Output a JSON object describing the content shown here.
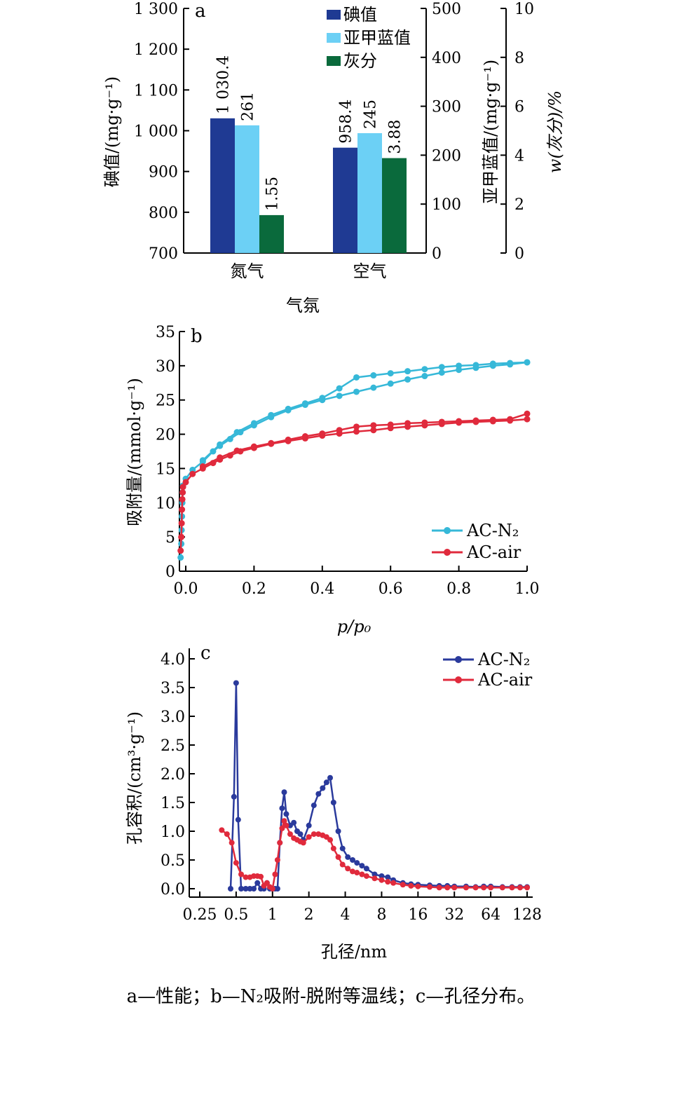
{
  "caption": "a—性能；b—N₂吸附-脱附等温线；c—孔径分布。",
  "chart_data": [
    {
      "panel": "a",
      "type": "bar",
      "categories": [
        "氮气",
        "空气"
      ],
      "xlabel": "气氛",
      "series": [
        {
          "name": "碘值",
          "axis": "left",
          "color": "#1f3a93",
          "values": [
            1030.4,
            958.4
          ],
          "labels": [
            "1 030.4",
            "958.4"
          ]
        },
        {
          "name": "亚甲蓝值",
          "axis": "right1",
          "color": "#6cd0f5",
          "values": [
            261,
            245
          ],
          "labels": [
            "261",
            "245"
          ]
        },
        {
          "name": "灰分",
          "axis": "right2",
          "color": "#0a6a3c",
          "values": [
            1.55,
            3.88
          ],
          "labels": [
            "1.55",
            "3.88"
          ]
        }
      ],
      "axes": {
        "left": {
          "label": "碘值/(mg·g⁻¹)",
          "range": [
            700,
            1300
          ],
          "ticks": [
            "700",
            "800",
            "900",
            "1 000",
            "1 100",
            "1 200",
            "1 300"
          ]
        },
        "right1": {
          "label": "亚甲蓝值/(mg·g⁻¹)",
          "range": [
            0,
            500
          ],
          "ticks": [
            "0",
            "100",
            "200",
            "300",
            "400",
            "500"
          ]
        },
        "right2": {
          "label": "w(灰分)/%",
          "range": [
            0,
            10
          ],
          "ticks": [
            "0",
            "2",
            "4",
            "6",
            "8",
            "10"
          ]
        }
      },
      "legend_position": "top-center"
    },
    {
      "panel": "b",
      "type": "line",
      "xlabel": "p/p₀",
      "ylabel": "吸附量/(mmol·g⁻¹)",
      "xlim": [
        -0.02,
        1.0
      ],
      "ylim": [
        0,
        35
      ],
      "xticks": [
        "0.0",
        "0.2",
        "0.4",
        "0.6",
        "0.8",
        "1.0"
      ],
      "yticks": [
        "0",
        "5",
        "10",
        "15",
        "20",
        "25",
        "30",
        "35"
      ],
      "legend_position": "bottom-right",
      "series": [
        {
          "name": "AC-N₂",
          "color": "#36b8d8",
          "branch": "adsorption",
          "x": [
            -0.015,
            -0.013,
            -0.012,
            -0.011,
            -0.01,
            -0.009,
            -0.008,
            0.0,
            0.02,
            0.05,
            0.08,
            0.1,
            0.13,
            0.16,
            0.2,
            0.25,
            0.3,
            0.35,
            0.4,
            0.45,
            0.5,
            0.55,
            0.6,
            0.65,
            0.7,
            0.75,
            0.8,
            0.85,
            0.9,
            0.95,
            1.0
          ],
          "y": [
            2,
            4,
            6,
            8,
            10,
            11.5,
            12.5,
            13.5,
            14.8,
            16,
            17.5,
            18.3,
            19.3,
            20.3,
            21.3,
            22.5,
            23.5,
            24.3,
            25,
            25.6,
            26.2,
            26.8,
            27.4,
            28,
            28.5,
            29,
            29.4,
            29.7,
            30,
            30.2,
            30.5
          ]
        },
        {
          "name": "AC-N₂",
          "color": "#36b8d8",
          "branch": "desorption",
          "x": [
            1.0,
            0.95,
            0.9,
            0.85,
            0.8,
            0.75,
            0.7,
            0.65,
            0.6,
            0.55,
            0.5,
            0.45,
            0.4,
            0.35,
            0.3,
            0.25,
            0.2,
            0.15,
            0.1,
            0.05
          ],
          "y": [
            30.5,
            30.4,
            30.3,
            30.1,
            30,
            29.8,
            29.5,
            29.2,
            28.9,
            28.6,
            28.3,
            26.7,
            25.3,
            24.5,
            23.7,
            22.8,
            21.6,
            20.3,
            18.5,
            16.2
          ]
        },
        {
          "name": "AC-air",
          "color": "#e02a3c",
          "branch": "adsorption",
          "x": [
            -0.015,
            -0.013,
            -0.012,
            -0.011,
            -0.01,
            -0.009,
            -0.008,
            0.0,
            0.02,
            0.05,
            0.08,
            0.1,
            0.13,
            0.16,
            0.2,
            0.25,
            0.3,
            0.35,
            0.4,
            0.45,
            0.5,
            0.55,
            0.6,
            0.65,
            0.7,
            0.75,
            0.8,
            0.85,
            0.9,
            0.95,
            1.0
          ],
          "y": [
            3,
            5,
            7,
            9,
            10.5,
            11.5,
            12.3,
            13,
            14.2,
            15,
            15.8,
            16.3,
            16.9,
            17.5,
            18,
            18.6,
            19,
            19.4,
            19.8,
            20.1,
            20.4,
            20.6,
            20.9,
            21.1,
            21.3,
            21.5,
            21.7,
            21.8,
            21.9,
            22,
            22.2
          ]
        },
        {
          "name": "AC-air",
          "color": "#e02a3c",
          "branch": "desorption",
          "x": [
            1.0,
            0.95,
            0.9,
            0.85,
            0.8,
            0.75,
            0.7,
            0.65,
            0.6,
            0.55,
            0.5,
            0.45,
            0.4,
            0.35,
            0.3,
            0.25,
            0.2,
            0.15,
            0.1,
            0.05
          ],
          "y": [
            23,
            22.2,
            22.1,
            22,
            21.9,
            21.8,
            21.7,
            21.6,
            21.4,
            21.3,
            21.1,
            20.6,
            20.1,
            19.7,
            19.2,
            18.7,
            18.2,
            17.6,
            16.6,
            15.3
          ]
        }
      ]
    },
    {
      "panel": "c",
      "type": "line",
      "xlabel": "孔径/nm",
      "ylabel": "孔容积/(cm³·g⁻¹)",
      "xscale": "log2",
      "xlim": [
        0.25,
        128
      ],
      "ylim": [
        0,
        4.0
      ],
      "xticks": [
        "0.25",
        "0.5",
        "1",
        "2",
        "4",
        "8",
        "16",
        "32",
        "64",
        "128"
      ],
      "yticks": [
        "0.0",
        "0.5",
        "1.0",
        "1.5",
        "2.0",
        "2.5",
        "3.0",
        "3.5",
        "4.0"
      ],
      "legend_position": "top-right",
      "series": [
        {
          "name": "AC-N₂",
          "color": "#2a3a9c",
          "x": [
            0.45,
            0.48,
            0.5,
            0.52,
            0.55,
            0.6,
            0.65,
            0.7,
            0.75,
            0.8,
            0.85,
            0.9,
            0.95,
            1.0,
            1.05,
            1.1,
            1.15,
            1.2,
            1.25,
            1.3,
            1.4,
            1.5,
            1.6,
            1.7,
            1.8,
            2.0,
            2.2,
            2.4,
            2.6,
            2.8,
            3.0,
            3.2,
            3.5,
            3.8,
            4.2,
            4.6,
            5.0,
            5.5,
            6.0,
            7.0,
            8.0,
            9.0,
            10,
            12,
            14,
            16,
            20,
            24,
            28,
            32,
            40,
            48,
            56,
            64,
            80,
            96,
            112,
            128
          ],
          "y": [
            0.0,
            1.6,
            3.58,
            1.2,
            0.0,
            0.0,
            0.0,
            0.0,
            0.1,
            0.0,
            0.0,
            0.1,
            0.0,
            0.0,
            0.0,
            0.0,
            0.8,
            1.4,
            1.68,
            1.3,
            1.1,
            1.15,
            1.0,
            0.95,
            0.85,
            1.1,
            1.45,
            1.65,
            1.75,
            1.85,
            1.93,
            1.5,
            1.0,
            0.7,
            0.55,
            0.5,
            0.45,
            0.4,
            0.35,
            0.25,
            0.22,
            0.2,
            0.15,
            0.1,
            0.08,
            0.07,
            0.06,
            0.05,
            0.05,
            0.04,
            0.04,
            0.03,
            0.04,
            0.04,
            0.03,
            0.03,
            0.03,
            0.03
          ]
        },
        {
          "name": "AC-air",
          "color": "#e02a3c",
          "x": [
            0.38,
            0.42,
            0.46,
            0.5,
            0.55,
            0.6,
            0.65,
            0.7,
            0.75,
            0.8,
            0.85,
            0.9,
            0.95,
            1.0,
            1.05,
            1.1,
            1.15,
            1.2,
            1.25,
            1.3,
            1.4,
            1.5,
            1.6,
            1.7,
            1.8,
            2.0,
            2.2,
            2.4,
            2.6,
            2.8,
            3.0,
            3.2,
            3.5,
            3.8,
            4.2,
            4.6,
            5.0,
            5.5,
            6.0,
            7.0,
            8.0,
            9.0,
            10,
            12,
            14,
            16,
            20,
            24,
            28,
            32,
            40,
            48,
            56,
            64,
            80,
            96,
            112,
            128
          ],
          "y": [
            1.02,
            0.95,
            0.8,
            0.45,
            0.25,
            0.2,
            0.2,
            0.22,
            0.22,
            0.21,
            0.05,
            0.1,
            0.03,
            0.0,
            0.25,
            0.5,
            0.8,
            1.05,
            1.18,
            1.1,
            0.95,
            0.88,
            0.85,
            0.82,
            0.8,
            0.9,
            0.95,
            0.95,
            0.93,
            0.9,
            0.85,
            0.7,
            0.55,
            0.42,
            0.35,
            0.3,
            0.28,
            0.25,
            0.22,
            0.18,
            0.15,
            0.12,
            0.1,
            0.07,
            0.05,
            0.04,
            0.03,
            0.02,
            0.02,
            0.02,
            0.02,
            0.02,
            0.02,
            0.02,
            0.02,
            0.02,
            0.02,
            0.02
          ]
        }
      ]
    }
  ]
}
